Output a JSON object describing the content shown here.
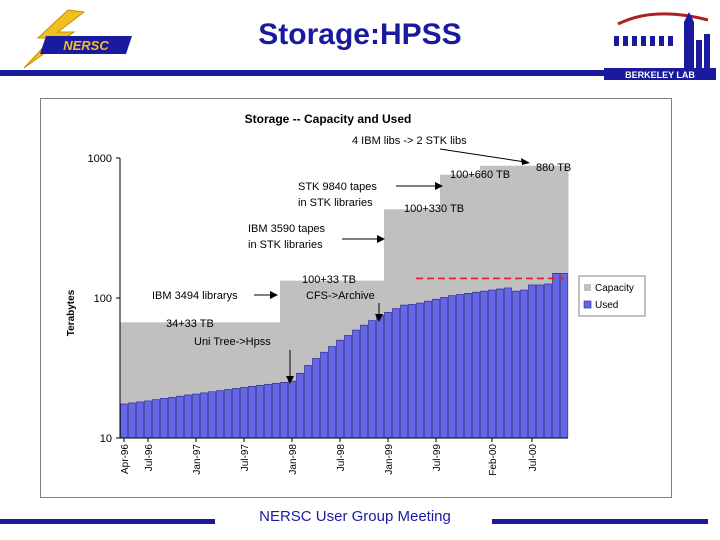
{
  "slide": {
    "title": "Storage:HPSS",
    "footer": "NERSC User Group Meeting",
    "logo_left_text": "NERSC",
    "logo_right_text": "BERKELEY LAB"
  },
  "colors": {
    "title_blue": "#1a1a9e",
    "capacity": "#c0c0c0",
    "used": "#6666e8",
    "used_stroke": "#20208a",
    "dashed_line": "#e02020",
    "logo_yellow": "#f0c020"
  },
  "chart_data": {
    "type": "area",
    "title": "Storage -- Capacity and Used",
    "ylabel": "Terabytes",
    "xlabel": "",
    "yscale": "log",
    "ylim": [
      10,
      1000
    ],
    "yticks": [
      10,
      100,
      1000
    ],
    "n_periods": 56,
    "x_tick_labels": [
      {
        "period": 0,
        "label": "Apr-96"
      },
      {
        "period": 3,
        "label": "Jul-96"
      },
      {
        "period": 9,
        "label": "Jan-97"
      },
      {
        "period": 15,
        "label": "Jul-97"
      },
      {
        "period": 21,
        "label": "Jan-98"
      },
      {
        "period": 27,
        "label": "Jul-98"
      },
      {
        "period": 33,
        "label": "Jan-99"
      },
      {
        "period": 39,
        "label": "Jul-99"
      },
      {
        "period": 46,
        "label": "Feb-00"
      },
      {
        "period": 51,
        "label": "Jul-00"
      }
    ],
    "series": [
      {
        "name": "Capacity",
        "steps": [
          {
            "from": 0,
            "to": 20,
            "value": 67
          },
          {
            "from": 20,
            "to": 33,
            "value": 133
          },
          {
            "from": 33,
            "to": 40,
            "value": 430
          },
          {
            "from": 40,
            "to": 45,
            "value": 760
          },
          {
            "from": 45,
            "to": 56,
            "value": 880
          }
        ]
      },
      {
        "name": "Used",
        "values": [
          17.5,
          17.8,
          18.1,
          18.4,
          18.8,
          19.2,
          19.5,
          19.9,
          20.3,
          20.6,
          21,
          21.4,
          21.8,
          22.2,
          22.6,
          23,
          23.4,
          23.8,
          24.2,
          24.6,
          25,
          25.5,
          29,
          33,
          37,
          41,
          45,
          50,
          54,
          59,
          64,
          69,
          75,
          79,
          84,
          89,
          90,
          92,
          95,
          98,
          101,
          104,
          106,
          108,
          110,
          112,
          114,
          116,
          118,
          112,
          114,
          124,
          124,
          126,
          150,
          150
        ]
      }
    ],
    "reference_line": {
      "value": 138,
      "from": 37,
      "to": 55.5
    },
    "annotations": [
      {
        "text": "4 IBM libs -> 2 STK libs"
      },
      {
        "text": "880 TB"
      },
      {
        "text": "100+660 TB"
      },
      {
        "text": "STK 9840 tapes"
      },
      {
        "text": "in STK libraries"
      },
      {
        "text": "100+330 TB"
      },
      {
        "text": "IBM 3590 tapes"
      },
      {
        "text": "in STK libraries"
      },
      {
        "text": "100+33 TB"
      },
      {
        "text": "CFS->Archive"
      },
      {
        "text": "IBM 3494 librarys"
      },
      {
        "text": "34+33 TB"
      },
      {
        "text": "Uni Tree->Hpss"
      }
    ],
    "legend": {
      "position": "right",
      "entries": [
        "Capacity",
        "Used"
      ]
    },
    "grid": false
  }
}
